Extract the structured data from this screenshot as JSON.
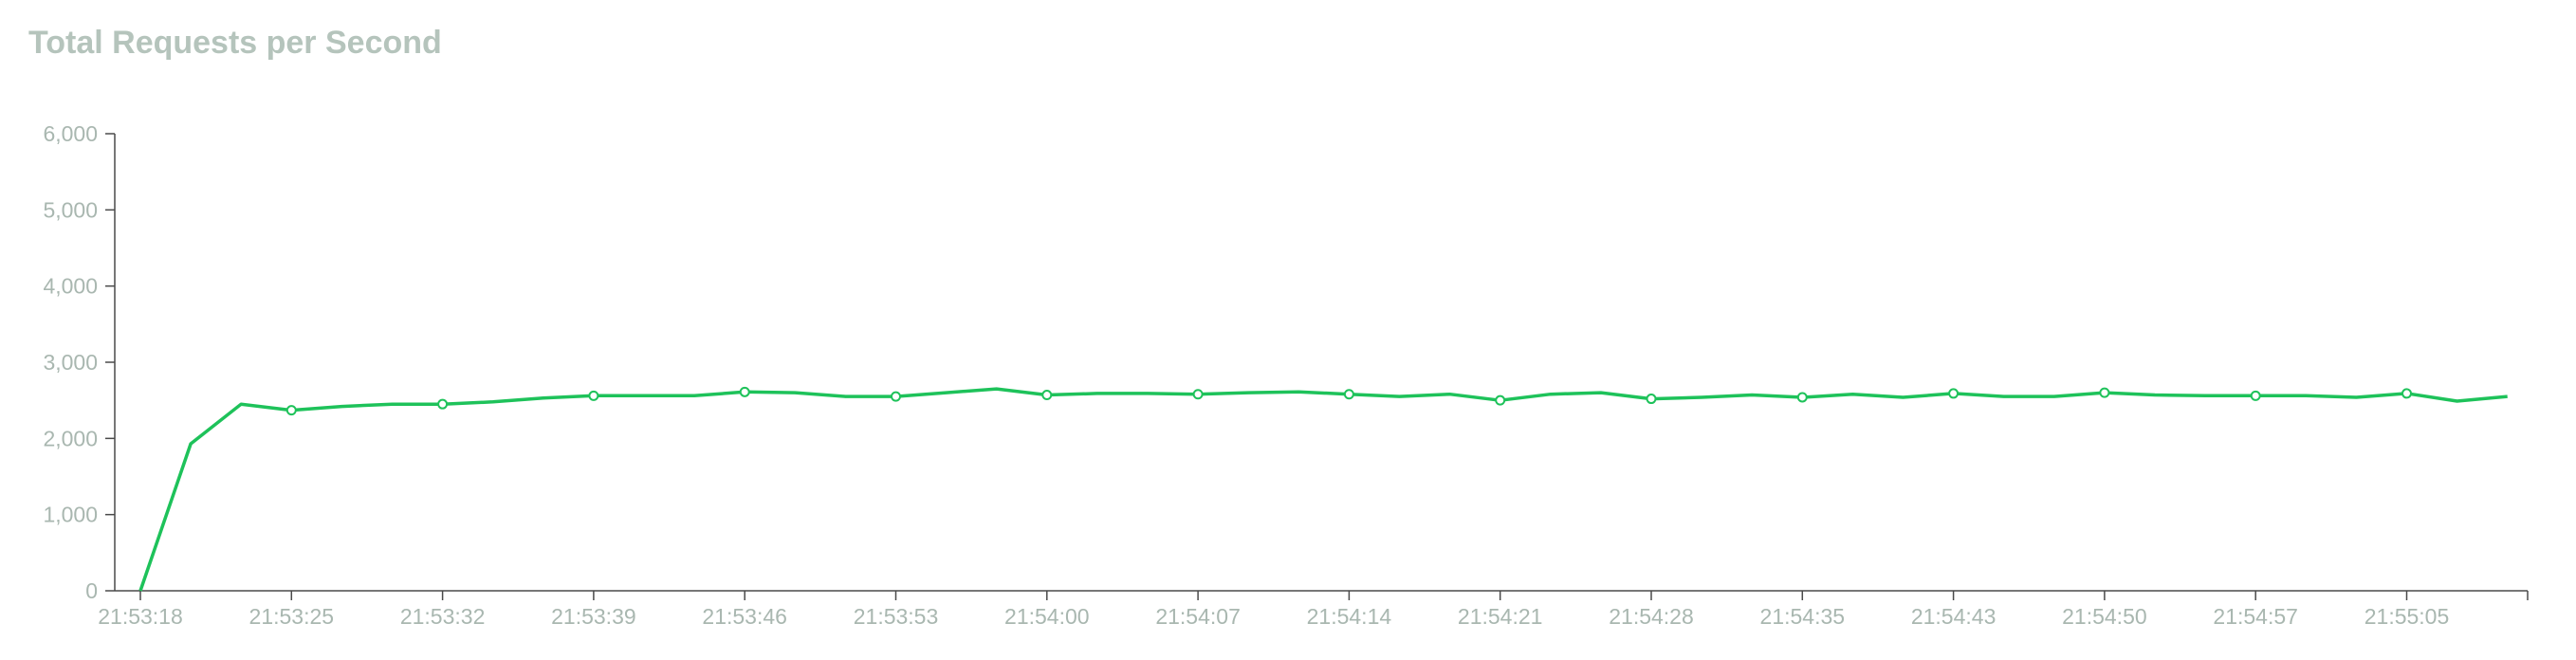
{
  "chart_data": {
    "type": "line",
    "title": "Total Requests per Second",
    "xlabel": "",
    "ylabel": "",
    "ylim": [
      0,
      6000
    ],
    "y_ticks": [
      0,
      1000,
      2000,
      3000,
      4000,
      5000,
      6000
    ],
    "y_tick_labels": [
      "0",
      "1,000",
      "2,000",
      "3,000",
      "4,000",
      "5,000",
      "6,000"
    ],
    "x_tick_labels": [
      "21:53:18",
      "21:53:25",
      "21:53:32",
      "21:53:39",
      "21:53:46",
      "21:53:53",
      "21:54:00",
      "21:54:07",
      "21:54:14",
      "21:54:21",
      "21:54:28",
      "21:54:35",
      "21:54:43",
      "21:54:50",
      "21:54:57",
      "21:55:05"
    ],
    "grid": false,
    "legend": "none",
    "line_color": "#1ec25a",
    "series": [
      {
        "values": [
          0,
          1930,
          2450,
          2370,
          2420,
          2450,
          2450,
          2480,
          2530,
          2560,
          2560,
          2560,
          2610,
          2600,
          2550,
          2550,
          2600,
          2650,
          2570,
          2590,
          2590,
          2580,
          2600,
          2610,
          2580,
          2550,
          2580,
          2500,
          2580,
          2600,
          2520,
          2540,
          2570,
          2540,
          2580,
          2540,
          2590,
          2550,
          2550,
          2600,
          2570,
          2560,
          2560,
          2560,
          2540,
          2590,
          2490,
          2550
        ],
        "marked_points": [
          3,
          6,
          9,
          12,
          15,
          18,
          21,
          24,
          27,
          30,
          33,
          36,
          39,
          42,
          45
        ]
      }
    ]
  }
}
